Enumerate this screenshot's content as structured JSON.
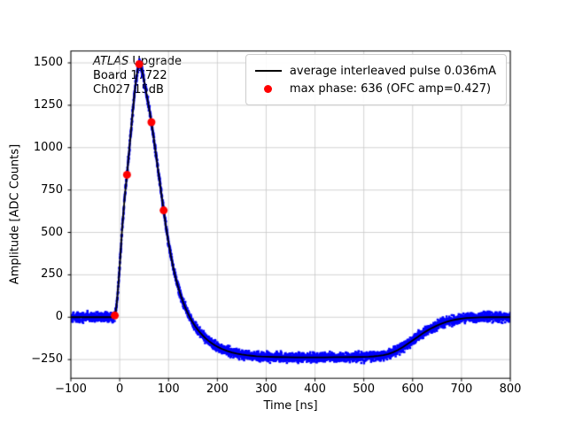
{
  "chart_data": {
    "type": "line",
    "title": "",
    "xlabel": "Time [ns]",
    "ylabel": "Amplitude [ADC Counts]",
    "xlim": [
      -100,
      800
    ],
    "ylim": [
      -360,
      1570
    ],
    "grid": true,
    "grid_color": "#c8c8c8",
    "frame_color": "#000000",
    "background": "#ffffff",
    "xticks": {
      "values": [
        -100,
        0,
        100,
        200,
        300,
        400,
        500,
        600,
        700,
        800
      ],
      "labels": [
        "−100",
        "0",
        "100",
        "200",
        "300",
        "400",
        "500",
        "600",
        "700",
        "800"
      ]
    },
    "yticks": {
      "values": [
        -250,
        0,
        250,
        500,
        750,
        1000,
        1250,
        1500
      ],
      "labels": [
        "−250",
        "0",
        "250",
        "500",
        "750",
        "1000",
        "1250",
        "1500"
      ]
    },
    "annotation": {
      "line1_italic": "ATLAS",
      "line1_rest": " Upgrade",
      "line2": "Board 17722",
      "line3": "Ch027 15dB"
    },
    "series": [
      {
        "name": "average interleaved pulse 0.036mA",
        "kind": "line",
        "color": "#000000",
        "width": 1.8,
        "points": [
          [
            -100,
            0
          ],
          [
            -40,
            0
          ],
          [
            -25,
            0
          ],
          [
            -18,
            0
          ],
          [
            -14,
            3
          ],
          [
            -12,
            5
          ],
          [
            -10,
            10
          ],
          [
            -8,
            35
          ],
          [
            -6,
            80
          ],
          [
            -4,
            150
          ],
          [
            -2,
            220
          ],
          [
            0,
            300
          ],
          [
            2,
            390
          ],
          [
            5,
            520
          ],
          [
            8,
            630
          ],
          [
            10,
            700
          ],
          [
            12,
            760
          ],
          [
            15,
            840
          ],
          [
            18,
            940
          ],
          [
            20,
            1000
          ],
          [
            22,
            1065
          ],
          [
            25,
            1160
          ],
          [
            28,
            1250
          ],
          [
            30,
            1310
          ],
          [
            33,
            1385
          ],
          [
            35,
            1430
          ],
          [
            38,
            1475
          ],
          [
            40,
            1492
          ],
          [
            42,
            1485
          ],
          [
            45,
            1460
          ],
          [
            48,
            1425
          ],
          [
            50,
            1395
          ],
          [
            55,
            1315
          ],
          [
            60,
            1235
          ],
          [
            65,
            1150
          ],
          [
            70,
            1050
          ],
          [
            75,
            945
          ],
          [
            80,
            840
          ],
          [
            85,
            735
          ],
          [
            90,
            630
          ],
          [
            95,
            530
          ],
          [
            100,
            440
          ],
          [
            105,
            360
          ],
          [
            110,
            290
          ],
          [
            115,
            228
          ],
          [
            120,
            175
          ],
          [
            125,
            128
          ],
          [
            130,
            88
          ],
          [
            135,
            52
          ],
          [
            140,
            20
          ],
          [
            145,
            -8
          ],
          [
            150,
            -33
          ],
          [
            155,
            -55
          ],
          [
            160,
            -75
          ],
          [
            165,
            -92
          ],
          [
            170,
            -108
          ],
          [
            175,
            -122
          ],
          [
            180,
            -135
          ],
          [
            185,
            -146
          ],
          [
            190,
            -157
          ],
          [
            195,
            -166
          ],
          [
            200,
            -174
          ],
          [
            210,
            -188
          ],
          [
            220,
            -199
          ],
          [
            230,
            -208
          ],
          [
            240,
            -215
          ],
          [
            250,
            -220
          ],
          [
            260,
            -224
          ],
          [
            270,
            -227
          ],
          [
            280,
            -230
          ],
          [
            290,
            -232
          ],
          [
            300,
            -233
          ],
          [
            320,
            -235
          ],
          [
            340,
            -236
          ],
          [
            360,
            -237
          ],
          [
            380,
            -237
          ],
          [
            400,
            -237
          ],
          [
            420,
            -237
          ],
          [
            440,
            -236
          ],
          [
            460,
            -236
          ],
          [
            480,
            -235
          ],
          [
            500,
            -234
          ],
          [
            510,
            -233
          ],
          [
            520,
            -231
          ],
          [
            530,
            -228
          ],
          [
            540,
            -224
          ],
          [
            550,
            -217
          ],
          [
            560,
            -207
          ],
          [
            570,
            -193
          ],
          [
            580,
            -176
          ],
          [
            590,
            -157
          ],
          [
            600,
            -137
          ],
          [
            610,
            -117
          ],
          [
            620,
            -97
          ],
          [
            630,
            -79
          ],
          [
            640,
            -63
          ],
          [
            650,
            -49
          ],
          [
            660,
            -37
          ],
          [
            670,
            -27
          ],
          [
            680,
            -19
          ],
          [
            690,
            -13
          ],
          [
            700,
            -8
          ],
          [
            710,
            -5
          ],
          [
            720,
            -3
          ],
          [
            740,
            -1
          ],
          [
            760,
            0
          ],
          [
            800,
            0
          ]
        ]
      },
      {
        "kind": "band",
        "color": "#0000ff",
        "amplitude": 26,
        "step": 0.4,
        "per_step": 2,
        "dot_size": 2.5,
        "follows": 0
      },
      {
        "name": "max phase: 636 (OFC amp=0.427)",
        "kind": "scatter",
        "color": "#ff0000",
        "radius": 4.5,
        "points": [
          [
            -10,
            10
          ],
          [
            15,
            840
          ],
          [
            40,
            1492
          ],
          [
            65,
            1150
          ],
          [
            90,
            630
          ]
        ]
      }
    ],
    "legend": {
      "position": "upper right",
      "entries": [
        {
          "series": 0,
          "label": "average interleaved pulse 0.036mA"
        },
        {
          "series": 2,
          "label": "max phase: 636 (OFC amp=0.427)"
        }
      ]
    }
  }
}
